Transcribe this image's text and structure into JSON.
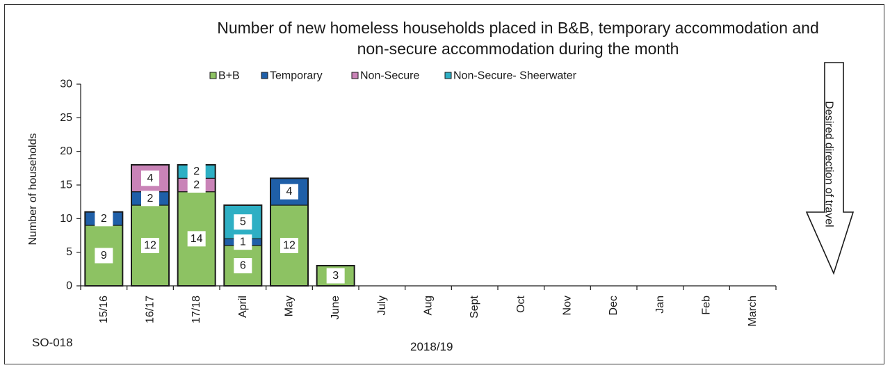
{
  "chart_data": {
    "type": "bar",
    "stacked": true,
    "title": "Number of new homeless households placed in B&B, temporary accommodation and non-secure accommodation during the month",
    "title_lines": [
      "Number of new homeless households placed in B&B, temporary accommodation and",
      "non-secure accommodation during the month"
    ],
    "xlabel": "2018/19",
    "ylabel": "Number of households",
    "ylim": [
      0,
      30
    ],
    "yticks": [
      0,
      5,
      10,
      15,
      20,
      25,
      30
    ],
    "grid": false,
    "legend_position": "top",
    "categories": [
      "15/16",
      "16/17",
      "17/18",
      "April",
      "May",
      "June",
      "July",
      "Aug",
      "Sept",
      "Oct",
      "Nov",
      "Dec",
      "Jan",
      "Feb",
      "March"
    ],
    "series": [
      {
        "name": "B+B",
        "color": "#8dc263",
        "values": [
          9,
          12,
          14,
          6,
          12,
          3,
          null,
          null,
          null,
          null,
          null,
          null,
          null,
          null,
          null
        ]
      },
      {
        "name": "Temporary",
        "color": "#1f5fa8",
        "values": [
          2,
          2,
          null,
          1,
          4,
          null,
          null,
          null,
          null,
          null,
          null,
          null,
          null,
          null,
          null
        ]
      },
      {
        "name": "Non-Secure",
        "color": "#c983b7",
        "values": [
          null,
          4,
          2,
          null,
          null,
          null,
          null,
          null,
          null,
          null,
          null,
          null,
          null,
          null,
          null
        ]
      },
      {
        "name": "Non-Secure- Sheerwater",
        "color": "#2eafc4",
        "values": [
          null,
          null,
          2,
          5,
          null,
          null,
          null,
          null,
          null,
          null,
          null,
          null,
          null,
          null,
          null
        ]
      }
    ],
    "annotation": "Desired direction of travel",
    "footnote": "SO-018"
  }
}
